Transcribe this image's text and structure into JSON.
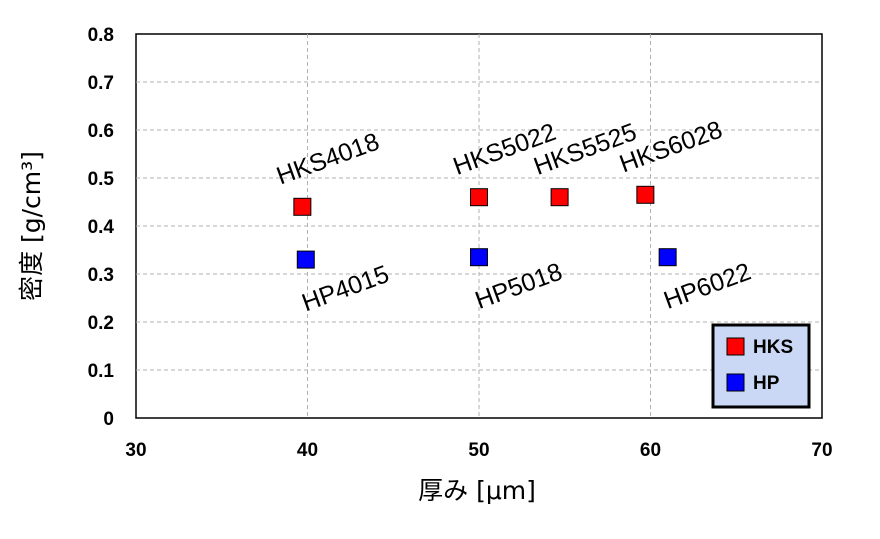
{
  "chart_data": {
    "type": "scatter",
    "xlabel": "厚み [μm]",
    "ylabel": "密度 [g/cm³]",
    "xlim": [
      30,
      70
    ],
    "ylim": [
      0,
      0.8
    ],
    "x_ticks": [
      "30",
      "40",
      "50",
      "60",
      "70"
    ],
    "y_ticks": [
      "0",
      "0.1",
      "0.2",
      "0.3",
      "0.4",
      "0.5",
      "0.6",
      "0.7",
      "0.8"
    ],
    "grid": "dashed",
    "legend_position": "bottom-right",
    "series": [
      {
        "name": "HKS",
        "color": "#ff0000",
        "marker": "square",
        "points": [
          {
            "x": 39.7,
            "y": 0.44,
            "label": "HKS4018"
          },
          {
            "x": 50.0,
            "y": 0.46,
            "label": "HKS5022"
          },
          {
            "x": 54.7,
            "y": 0.46,
            "label": "HKS5525"
          },
          {
            "x": 59.7,
            "y": 0.465,
            "label": "HKS6028"
          }
        ]
      },
      {
        "name": "HP",
        "color": "#0000ff",
        "marker": "square",
        "points": [
          {
            "x": 39.9,
            "y": 0.33,
            "label": "HP4015"
          },
          {
            "x": 50.0,
            "y": 0.335,
            "label": "HP5018"
          },
          {
            "x": 61.0,
            "y": 0.335,
            "label": "HP6022"
          }
        ]
      }
    ]
  }
}
